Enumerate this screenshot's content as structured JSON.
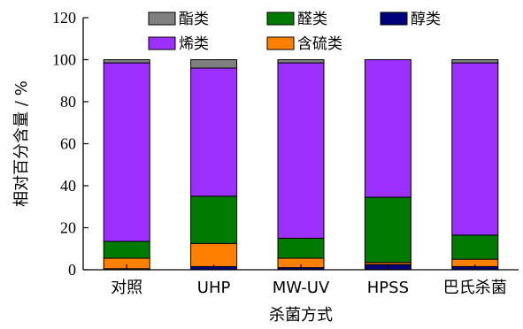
{
  "chart_data": {
    "type": "bar",
    "stacked": true,
    "categories": [
      "对照",
      "UHP",
      "MW-UV",
      "HPSS",
      "巴氏杀菌"
    ],
    "series": [
      {
        "name": "醇类",
        "color": "#00007a",
        "values": [
          0.5,
          1.5,
          1.0,
          2.5,
          1.5
        ]
      },
      {
        "name": "含硫类",
        "color": "#ff7f00",
        "values": [
          5.0,
          11.0,
          4.5,
          1.0,
          3.5
        ]
      },
      {
        "name": "醛类",
        "color": "#007a00",
        "values": [
          8.0,
          22.5,
          9.5,
          31.0,
          11.5
        ]
      },
      {
        "name": "烯类",
        "color": "#9b30ff",
        "values": [
          85.0,
          61.0,
          83.5,
          65.5,
          82.0
        ]
      },
      {
        "name": "酯类",
        "color": "#808080",
        "values": [
          1.5,
          4.0,
          1.5,
          0,
          1.5
        ]
      }
    ],
    "legend_order": [
      "酯类",
      "醛类",
      "醇类",
      "烯类",
      "含硫类"
    ],
    "legend_placement": "top",
    "xlabel": "杀菌方式",
    "ylabel": "相对百分含量 / %",
    "ylim": [
      0,
      120
    ],
    "yticks": [
      "0",
      "20",
      "40",
      "60",
      "80",
      "100",
      "120"
    ],
    "grid": false
  }
}
